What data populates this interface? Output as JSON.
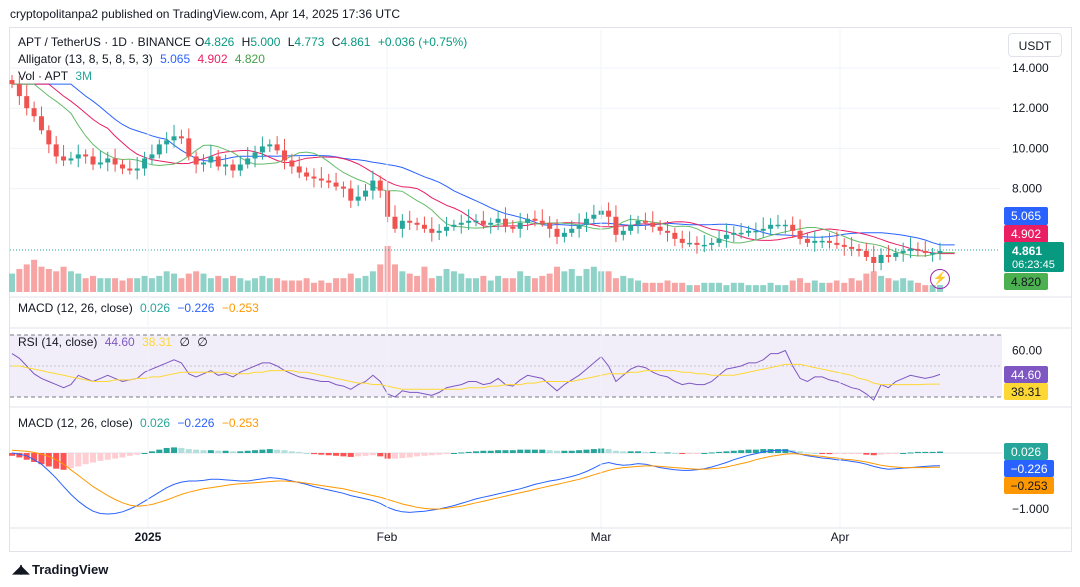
{
  "publish_line": "cryptopolitanpa2 published on TradingView.com, Apr 14, 2025 17:36 UTC",
  "currency_button": "USDT",
  "footer_brand": "TradingView",
  "colors": {
    "up": "#26a69a",
    "down": "#ef5350",
    "vol_up": "#8fd3c8",
    "vol_down": "#f7a5a4",
    "jaw": "#2962ff",
    "teeth": "#e91e63",
    "lips": "#66bb6a",
    "macd": "#2962ff",
    "signal": "#ff9800",
    "rsi": "#7e57c2",
    "rsi_ma": "#fdd835"
  },
  "main_legend": {
    "symbol": "APT / TetherUS · 1D · BINANCE",
    "o_label": "O",
    "o_value": "4.826",
    "h_label": "H",
    "h_value": "5.000",
    "l_label": "L",
    "l_value": "4.773",
    "c_label": "C",
    "c_value": "4.861",
    "change": "+0.036 (+0.75%)",
    "alligator_label": "Alligator (13, 8, 5, 8, 5, 3)",
    "alligator_jaw": "5.065",
    "alligator_teeth": "4.902",
    "alligator_lips": "4.820",
    "vol_label": "Vol · APT",
    "vol_value": "3M"
  },
  "macd_legend_1": {
    "label": "MACD (12, 26, close)",
    "hist": "0.026",
    "macd": "−0.226",
    "signal": "−0.253"
  },
  "rsi_legend": {
    "label": "RSI (14, close)",
    "rsi": "44.60",
    "ma": "38.31",
    "e1": "∅",
    "e2": "∅"
  },
  "macd_legend_2": {
    "label": "MACD (12, 26, close)",
    "hist": "0.026",
    "macd": "−0.226",
    "signal": "−0.253"
  },
  "countdown": "06:23:45",
  "chart_data": [
    {
      "type": "candlestick",
      "title": "APT / TetherUS · 1D · BINANCE",
      "x_ticks": [
        "2025",
        "Feb",
        "Mar",
        "Apr"
      ],
      "y_ticks": [
        "14.000",
        "12.000",
        "10.000",
        "8.000"
      ],
      "price_badges": {
        "jaw": "5.065",
        "teeth": "4.902",
        "close": "4.861",
        "lips": "4.820"
      },
      "closes": [
        13.2,
        12.6,
        12.0,
        11.6,
        10.9,
        10.2,
        9.6,
        9.4,
        9.5,
        9.7,
        9.6,
        9.2,
        9.3,
        9.5,
        9.2,
        9.0,
        8.9,
        9.0,
        9.5,
        9.7,
        10.2,
        10.4,
        10.6,
        10.5,
        9.6,
        9.2,
        9.3,
        9.6,
        9.1,
        9.2,
        8.9,
        9.2,
        9.5,
        9.8,
        10.1,
        10.2,
        9.9,
        9.4,
        9.1,
        8.8,
        8.6,
        8.5,
        8.4,
        8.3,
        8.1,
        8.0,
        7.4,
        7.6,
        7.9,
        8.4,
        7.9,
        6.6,
        6.0,
        6.4,
        6.3,
        6.2,
        6.0,
        5.8,
        5.9,
        6.1,
        6.2,
        6.3,
        6.4,
        6.4,
        6.2,
        6.3,
        6.5,
        6.1,
        6.0,
        6.3,
        6.5,
        6.4,
        6.3,
        6.0,
        5.6,
        5.8,
        6.0,
        6.2,
        6.5,
        6.7,
        6.9,
        6.6,
        5.7,
        5.9,
        6.2,
        6.4,
        6.3,
        6.1,
        5.9,
        5.8,
        5.5,
        5.3,
        5.3,
        5.2,
        5.2,
        5.3,
        5.5,
        5.7,
        5.8,
        5.8,
        5.9,
        5.9,
        6.0,
        6.2,
        6.2,
        6.2,
        5.9,
        5.5,
        5.3,
        5.4,
        5.4,
        5.3,
        5.2,
        5.1,
        5.0,
        4.9,
        4.6,
        4.3,
        4.7,
        4.6,
        4.8,
        4.9,
        5.0,
        4.9,
        4.8,
        4.8,
        4.9
      ],
      "volume_relative": [
        0.4,
        0.5,
        0.6,
        0.7,
        0.55,
        0.5,
        0.45,
        0.55,
        0.45,
        0.4,
        0.3,
        0.35,
        0.3,
        0.3,
        0.3,
        0.25,
        0.3,
        0.3,
        0.35,
        0.3,
        0.35,
        0.45,
        0.4,
        0.3,
        0.4,
        0.45,
        0.4,
        0.3,
        0.35,
        0.3,
        0.35,
        0.3,
        0.25,
        0.3,
        0.35,
        0.3,
        0.3,
        0.25,
        0.25,
        0.25,
        0.3,
        0.2,
        0.25,
        0.2,
        0.3,
        0.3,
        0.4,
        0.3,
        0.35,
        0.45,
        0.6,
        1.0,
        0.6,
        0.45,
        0.4,
        0.35,
        0.55,
        0.3,
        0.35,
        0.5,
        0.45,
        0.4,
        0.3,
        0.3,
        0.35,
        0.25,
        0.35,
        0.3,
        0.3,
        0.45,
        0.35,
        0.3,
        0.35,
        0.4,
        0.55,
        0.45,
        0.5,
        0.35,
        0.5,
        0.55,
        0.45,
        0.45,
        0.3,
        0.35,
        0.3,
        0.25,
        0.2,
        0.2,
        0.2,
        0.25,
        0.2,
        0.2,
        0.15,
        0.15,
        0.2,
        0.2,
        0.2,
        0.15,
        0.2,
        0.2,
        0.15,
        0.15,
        0.15,
        0.2,
        0.15,
        0.15,
        0.25,
        0.3,
        0.2,
        0.25,
        0.2,
        0.2,
        0.25,
        0.2,
        0.3,
        0.25,
        0.4,
        0.45,
        0.35,
        0.3,
        0.25,
        0.3,
        0.25,
        0.2,
        0.15,
        0.15,
        0.15
      ]
    },
    {
      "type": "line",
      "title": "RSI (14, close)",
      "y_ticks": [
        "60.00"
      ],
      "band": [
        30,
        70
      ],
      "badges": {
        "rsi": "44.60",
        "ma": "38.31"
      },
      "series": [
        {
          "name": "RSI",
          "values": [
            58,
            55,
            50,
            45,
            42,
            40,
            38,
            36,
            38,
            44,
            42,
            40,
            42,
            44,
            42,
            40,
            41,
            42,
            46,
            48,
            50,
            52,
            54,
            52,
            45,
            43,
            45,
            47,
            44,
            45,
            43,
            46,
            48,
            50,
            52,
            52,
            50,
            47,
            45,
            43,
            42,
            41,
            40,
            40,
            38,
            37,
            35,
            38,
            40,
            44,
            40,
            32,
            30,
            34,
            33,
            33,
            32,
            31,
            33,
            36,
            37,
            38,
            40,
            40,
            38,
            39,
            42,
            38,
            37,
            41,
            44,
            43,
            42,
            38,
            34,
            38,
            41,
            44,
            48,
            52,
            56,
            50,
            40,
            44,
            48,
            50,
            49,
            46,
            44,
            43,
            40,
            38,
            39,
            38,
            38,
            40,
            44,
            48,
            49,
            50,
            52,
            52,
            54,
            58,
            58,
            60,
            50,
            42,
            40,
            43,
            43,
            41,
            40,
            38,
            36,
            35,
            32,
            28,
            38,
            36,
            40,
            42,
            44,
            43,
            42,
            43,
            44.6
          ]
        },
        {
          "name": "RSI MA",
          "values": [
            50,
            50,
            49,
            48,
            47,
            46,
            45,
            44,
            43,
            42,
            41,
            40,
            40,
            40,
            41,
            41,
            41,
            42,
            42,
            43,
            43,
            44,
            45,
            46,
            46,
            46,
            46,
            46,
            46,
            46,
            45,
            45,
            45,
            46,
            46,
            47,
            47,
            47,
            47,
            46,
            46,
            45,
            44,
            43,
            42,
            41,
            40,
            39,
            39,
            38,
            38,
            37,
            36,
            35,
            35,
            35,
            35,
            35,
            35,
            35,
            35,
            35,
            36,
            36,
            36,
            37,
            37,
            38,
            38,
            38,
            39,
            39,
            40,
            40,
            40,
            40,
            40,
            41,
            42,
            43,
            44,
            45,
            45,
            45,
            46,
            46,
            47,
            47,
            47,
            47,
            47,
            46,
            46,
            45,
            45,
            44,
            44,
            44,
            44,
            45,
            46,
            47,
            48,
            49,
            50,
            51,
            51,
            51,
            50,
            49,
            48,
            47,
            46,
            45,
            44,
            42,
            41,
            39,
            38,
            38,
            38,
            38,
            38,
            38,
            38.2,
            38.3,
            38.31
          ]
        }
      ]
    },
    {
      "type": "bar",
      "title": "MACD (12, 26, close)",
      "y_ticks": [
        "−1.000"
      ],
      "badges": {
        "hist": "0.026",
        "macd": "−0.226",
        "signal": "−0.253"
      },
      "series": [
        {
          "name": "Histogram",
          "values": [
            -0.05,
            -0.08,
            -0.12,
            -0.16,
            -0.2,
            -0.24,
            -0.28,
            -0.3,
            -0.27,
            -0.24,
            -0.2,
            -0.17,
            -0.14,
            -0.12,
            -0.1,
            -0.08,
            -0.05,
            -0.03,
            0.0,
            0.03,
            0.06,
            0.09,
            0.1,
            0.09,
            0.07,
            0.06,
            0.05,
            0.05,
            0.04,
            0.04,
            0.03,
            0.03,
            0.04,
            0.05,
            0.06,
            0.07,
            0.06,
            0.05,
            0.03,
            0.02,
            0.0,
            -0.02,
            -0.03,
            -0.04,
            -0.05,
            -0.06,
            -0.07,
            -0.06,
            -0.05,
            -0.04,
            -0.06,
            -0.1,
            -0.1,
            -0.09,
            -0.08,
            -0.06,
            -0.05,
            -0.04,
            -0.03,
            -0.02,
            0.0,
            0.01,
            0.02,
            0.03,
            0.04,
            0.04,
            0.05,
            0.05,
            0.05,
            0.06,
            0.06,
            0.06,
            0.06,
            0.05,
            0.04,
            0.04,
            0.04,
            0.05,
            0.06,
            0.07,
            0.08,
            0.07,
            0.04,
            0.03,
            0.03,
            0.03,
            0.02,
            0.02,
            0.01,
            0.01,
            0.0,
            -0.01,
            -0.01,
            -0.01,
            0.0,
            0.01,
            0.02,
            0.03,
            0.04,
            0.05,
            0.06,
            0.06,
            0.07,
            0.07,
            0.07,
            0.07,
            0.05,
            0.03,
            0.01,
            0.0,
            -0.01,
            -0.02,
            -0.02,
            -0.02,
            -0.02,
            -0.02,
            -0.03,
            -0.04,
            -0.03,
            -0.02,
            -0.01,
            0.0,
            0.01,
            0.02,
            0.02,
            0.02,
            0.026
          ]
        },
        {
          "name": "MACD",
          "values": [
            0.0,
            -0.02,
            -0.05,
            -0.12,
            -0.2,
            -0.32,
            -0.45,
            -0.6,
            -0.74,
            -0.86,
            -0.96,
            -1.04,
            -1.08,
            -1.09,
            -1.08,
            -1.05,
            -1.0,
            -0.94,
            -0.86,
            -0.78,
            -0.7,
            -0.62,
            -0.56,
            -0.52,
            -0.5,
            -0.5,
            -0.49,
            -0.47,
            -0.47,
            -0.48,
            -0.49,
            -0.5,
            -0.5,
            -0.48,
            -0.46,
            -0.44,
            -0.45,
            -0.47,
            -0.5,
            -0.53,
            -0.56,
            -0.6,
            -0.63,
            -0.66,
            -0.69,
            -0.72,
            -0.76,
            -0.79,
            -0.82,
            -0.85,
            -0.9,
            -0.97,
            -1.02,
            -1.05,
            -1.06,
            -1.05,
            -1.04,
            -1.02,
            -1.0,
            -0.97,
            -0.94,
            -0.9,
            -0.86,
            -0.82,
            -0.79,
            -0.76,
            -0.73,
            -0.7,
            -0.67,
            -0.64,
            -0.6,
            -0.56,
            -0.53,
            -0.5,
            -0.48,
            -0.45,
            -0.42,
            -0.38,
            -0.33,
            -0.27,
            -0.2,
            -0.17,
            -0.2,
            -0.22,
            -0.21,
            -0.19,
            -0.2,
            -0.23,
            -0.26,
            -0.28,
            -0.3,
            -0.31,
            -0.31,
            -0.3,
            -0.28,
            -0.25,
            -0.21,
            -0.17,
            -0.12,
            -0.08,
            -0.04,
            -0.01,
            0.02,
            0.04,
            0.05,
            0.05,
            0.02,
            -0.02,
            -0.05,
            -0.07,
            -0.09,
            -0.1,
            -0.12,
            -0.13,
            -0.15,
            -0.17,
            -0.2,
            -0.24,
            -0.27,
            -0.29,
            -0.28,
            -0.27,
            -0.26,
            -0.25,
            -0.24,
            -0.23,
            -0.226
          ]
        },
        {
          "name": "Signal",
          "values": [
            0.05,
            0.04,
            0.03,
            0.01,
            -0.02,
            -0.06,
            -0.12,
            -0.2,
            -0.3,
            -0.4,
            -0.5,
            -0.6,
            -0.68,
            -0.76,
            -0.83,
            -0.89,
            -0.93,
            -0.95,
            -0.94,
            -0.92,
            -0.88,
            -0.84,
            -0.79,
            -0.74,
            -0.7,
            -0.67,
            -0.64,
            -0.62,
            -0.6,
            -0.58,
            -0.56,
            -0.55,
            -0.54,
            -0.53,
            -0.52,
            -0.51,
            -0.5,
            -0.5,
            -0.51,
            -0.52,
            -0.54,
            -0.56,
            -0.58,
            -0.6,
            -0.62,
            -0.64,
            -0.67,
            -0.7,
            -0.73,
            -0.76,
            -0.79,
            -0.83,
            -0.87,
            -0.91,
            -0.94,
            -0.97,
            -0.99,
            -1.0,
            -1.0,
            -0.99,
            -0.97,
            -0.95,
            -0.92,
            -0.89,
            -0.86,
            -0.83,
            -0.8,
            -0.77,
            -0.74,
            -0.71,
            -0.68,
            -0.65,
            -0.62,
            -0.59,
            -0.56,
            -0.53,
            -0.5,
            -0.47,
            -0.43,
            -0.39,
            -0.35,
            -0.31,
            -0.28,
            -0.26,
            -0.25,
            -0.24,
            -0.23,
            -0.23,
            -0.24,
            -0.25,
            -0.26,
            -0.27,
            -0.28,
            -0.29,
            -0.29,
            -0.28,
            -0.27,
            -0.25,
            -0.22,
            -0.19,
            -0.16,
            -0.12,
            -0.09,
            -0.06,
            -0.04,
            -0.02,
            -0.01,
            -0.02,
            -0.03,
            -0.05,
            -0.06,
            -0.08,
            -0.09,
            -0.11,
            -0.12,
            -0.14,
            -0.16,
            -0.19,
            -0.22,
            -0.24,
            -0.25,
            -0.26,
            -0.26,
            -0.26,
            -0.26,
            -0.255,
            -0.253
          ]
        }
      ]
    }
  ]
}
